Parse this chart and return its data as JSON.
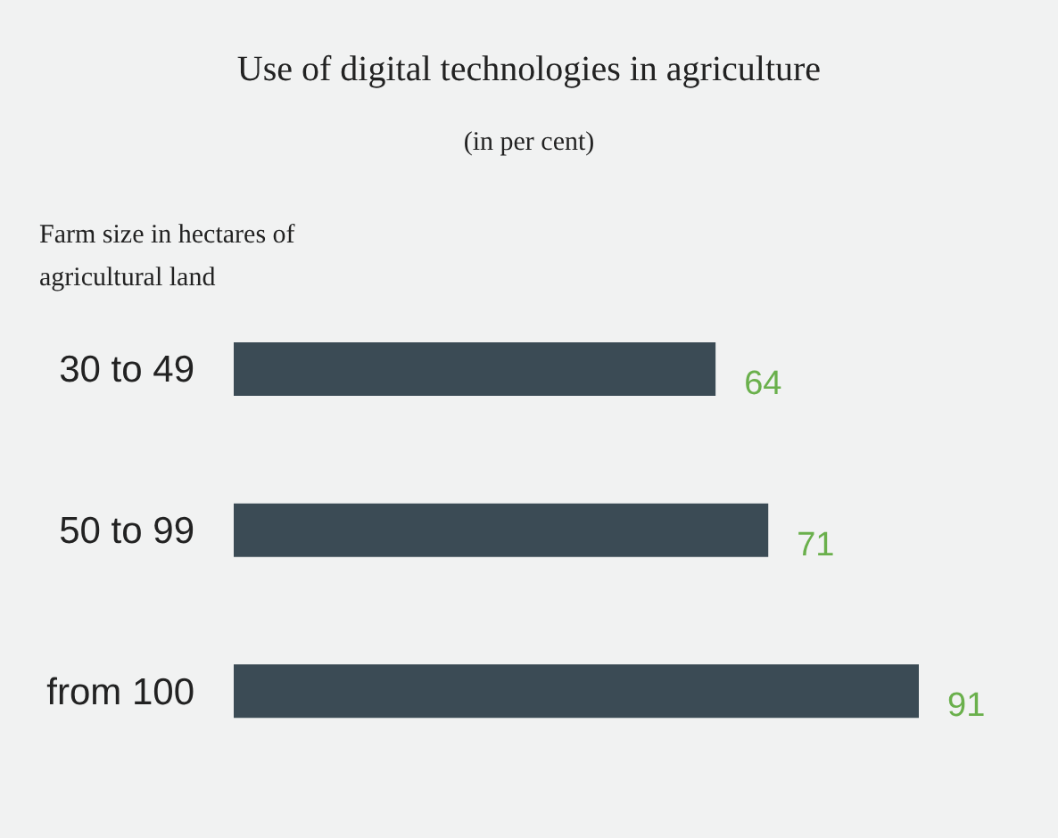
{
  "chart_data": {
    "type": "bar",
    "orientation": "horizontal",
    "title": "Use of digital technologies in agriculture",
    "subtitle": "(in per cent)",
    "ylabel": "Farm size in hectares of agricultural land",
    "categories": [
      "30 to 49",
      "50 to 99",
      "from 100"
    ],
    "values": [
      64,
      71,
      91
    ],
    "color": "#3b4b55",
    "data_labels": true
  }
}
